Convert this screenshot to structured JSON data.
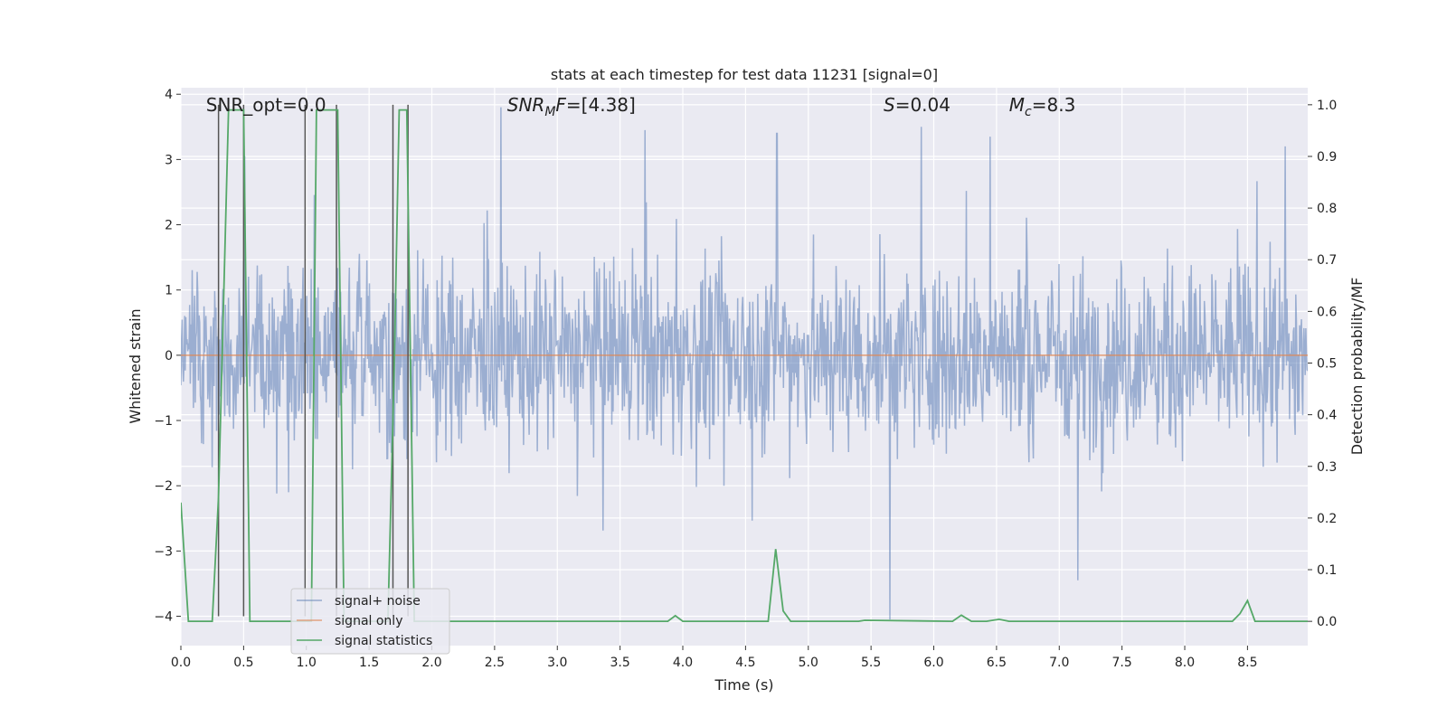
{
  "chart_data": {
    "type": "line",
    "title": "stats at each timestep for test data 11231 [signal=0]",
    "xlabel": "Time (s)",
    "ylabel_left": "Whitened strain",
    "ylabel_right": "Detection probability/MF",
    "xlim": [
      0,
      8.98
    ],
    "ylim_left": [
      -4.45,
      4.1
    ],
    "ylim_right": [
      -0.047,
      1.033
    ],
    "x_ticks": [
      "0.0",
      "0.5",
      "1.0",
      "1.5",
      "2.0",
      "2.5",
      "3.0",
      "3.5",
      "4.0",
      "4.5",
      "5.0",
      "5.5",
      "6.0",
      "6.5",
      "7.0",
      "7.5",
      "8.0",
      "8.5"
    ],
    "y_ticks_left": [
      "4",
      "3",
      "2",
      "1",
      "0",
      "−1",
      "−2",
      "−3",
      "−4"
    ],
    "y_ticks_right": [
      "1.0",
      "0.9",
      "0.8",
      "0.7",
      "0.6",
      "0.5",
      "0.4",
      "0.3",
      "0.2",
      "0.1",
      "0.0"
    ],
    "grid": true,
    "legend_placement": "lower-left",
    "annotations": [
      {
        "prefix": "SNR_opt=0.0",
        "sub": "",
        "suffix": "",
        "x": 0.2,
        "italic": false
      },
      {
        "prefix": "SNR",
        "sub": "M",
        "suffix": "F=[4.38]",
        "x": 2.6,
        "italic": true
      },
      {
        "prefix": "S",
        "sub": "",
        "suffix": "=0.04",
        "x": 5.6,
        "italic": true
      },
      {
        "prefix": "M",
        "sub": "c",
        "suffix": "=8.3",
        "x": 6.6,
        "italic": true
      }
    ],
    "series": [
      {
        "name": "signal+ noise",
        "color": "#4c72b0",
        "axis": "left",
        "description": "whitened strain noise, roughly +/-1.8 with spikes up to about +/-3.5",
        "notable_spikes": [
          {
            "x": 0.51,
            "y": 3.05
          },
          {
            "x": 2.55,
            "y": 3.8
          },
          {
            "x": 3.7,
            "y": 3.45
          },
          {
            "x": 4.75,
            "y": 3.4
          },
          {
            "x": 5.65,
            "y": -4.05
          },
          {
            "x": 5.9,
            "y": 3.5
          },
          {
            "x": 6.45,
            "y": 3.35
          },
          {
            "x": 7.15,
            "y": -3.45
          },
          {
            "x": 8.8,
            "y": 3.2
          }
        ]
      },
      {
        "name": "signal only",
        "color": "#dd8452",
        "axis": "left",
        "x": [
          0,
          8.98
        ],
        "y": [
          0,
          0
        ]
      },
      {
        "name": "signal statistics",
        "color": "#55a868",
        "axis": "right",
        "x": [
          0.0,
          0.06,
          0.25,
          0.3,
          0.38,
          0.46,
          0.5,
          0.55,
          1.0,
          1.04,
          1.08,
          1.25,
          1.3,
          1.65,
          1.7,
          1.74,
          1.8,
          1.86,
          3.88,
          3.94,
          4.0,
          4.68,
          4.74,
          4.8,
          4.86,
          5.4,
          5.45,
          6.15,
          6.22,
          6.3,
          6.42,
          6.52,
          6.6,
          8.38,
          8.44,
          8.5,
          8.56,
          8.98
        ],
        "y": [
          0.23,
          0.0,
          0.0,
          0.24,
          0.99,
          0.99,
          0.99,
          0.0,
          0.0,
          0.0,
          0.99,
          0.99,
          0.0,
          0.0,
          0.49,
          0.99,
          0.99,
          0.0,
          0.0,
          0.011,
          0.0,
          0.0,
          0.14,
          0.02,
          0.0,
          0.0,
          0.002,
          0.0,
          0.012,
          0.0,
          0.0,
          0.004,
          0.0,
          0.0,
          0.015,
          0.04,
          0.0,
          0.0
        ]
      }
    ],
    "vertical_markers": [
      0.3,
      0.5,
      0.99,
      1.24,
      1.69,
      1.81
    ]
  }
}
